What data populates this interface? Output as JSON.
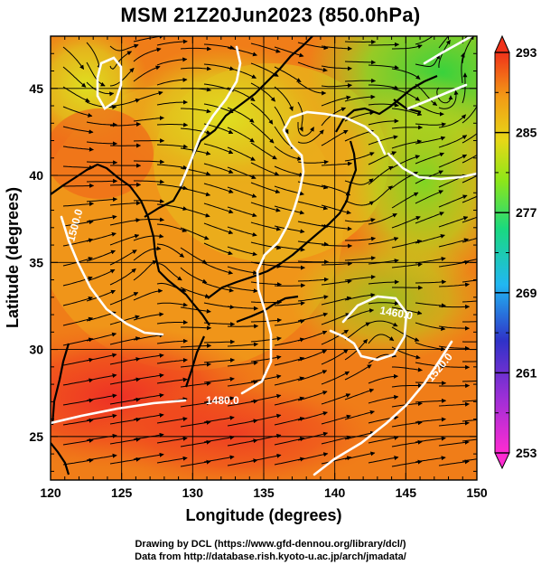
{
  "title": "MSM 21Z20Jun2023 (850.0hPa)",
  "map": {
    "lon_range": [
      120,
      150
    ],
    "lat_range": [
      22.5,
      48
    ],
    "x_axis_label": "Longitude (degrees)",
    "y_axis_label": "Latitude  (degrees)",
    "x_ticks": [
      "120",
      "125",
      "130",
      "135",
      "140",
      "145",
      "150"
    ],
    "y_ticks": [
      "25",
      "30",
      "35",
      "40",
      "45"
    ],
    "grid": true,
    "field": "temperature",
    "overlay": "wind streamlines"
  },
  "colorbar": {
    "labels": [
      "293",
      "285",
      "277",
      "269",
      "261",
      "253"
    ],
    "min": 253,
    "max": 293,
    "colors": [
      "#ff2bd2",
      "#2f32c8",
      "#21b7f2",
      "#1ad97f",
      "#8ee619",
      "#e6d817",
      "#f39a16",
      "#f0321a"
    ]
  },
  "contours": [
    {
      "label": "1480.0"
    },
    {
      "label": "1500.0"
    },
    {
      "label": "1520.0"
    },
    {
      "label": "1460.0"
    }
  ],
  "credits": {
    "line1": "Drawing by DCL (https://www.gfd‐dennou.org/library/dcl/)",
    "line2": "Data from http://database.rish.kyoto‐u.ac.jp/arch/jmadata/"
  }
}
